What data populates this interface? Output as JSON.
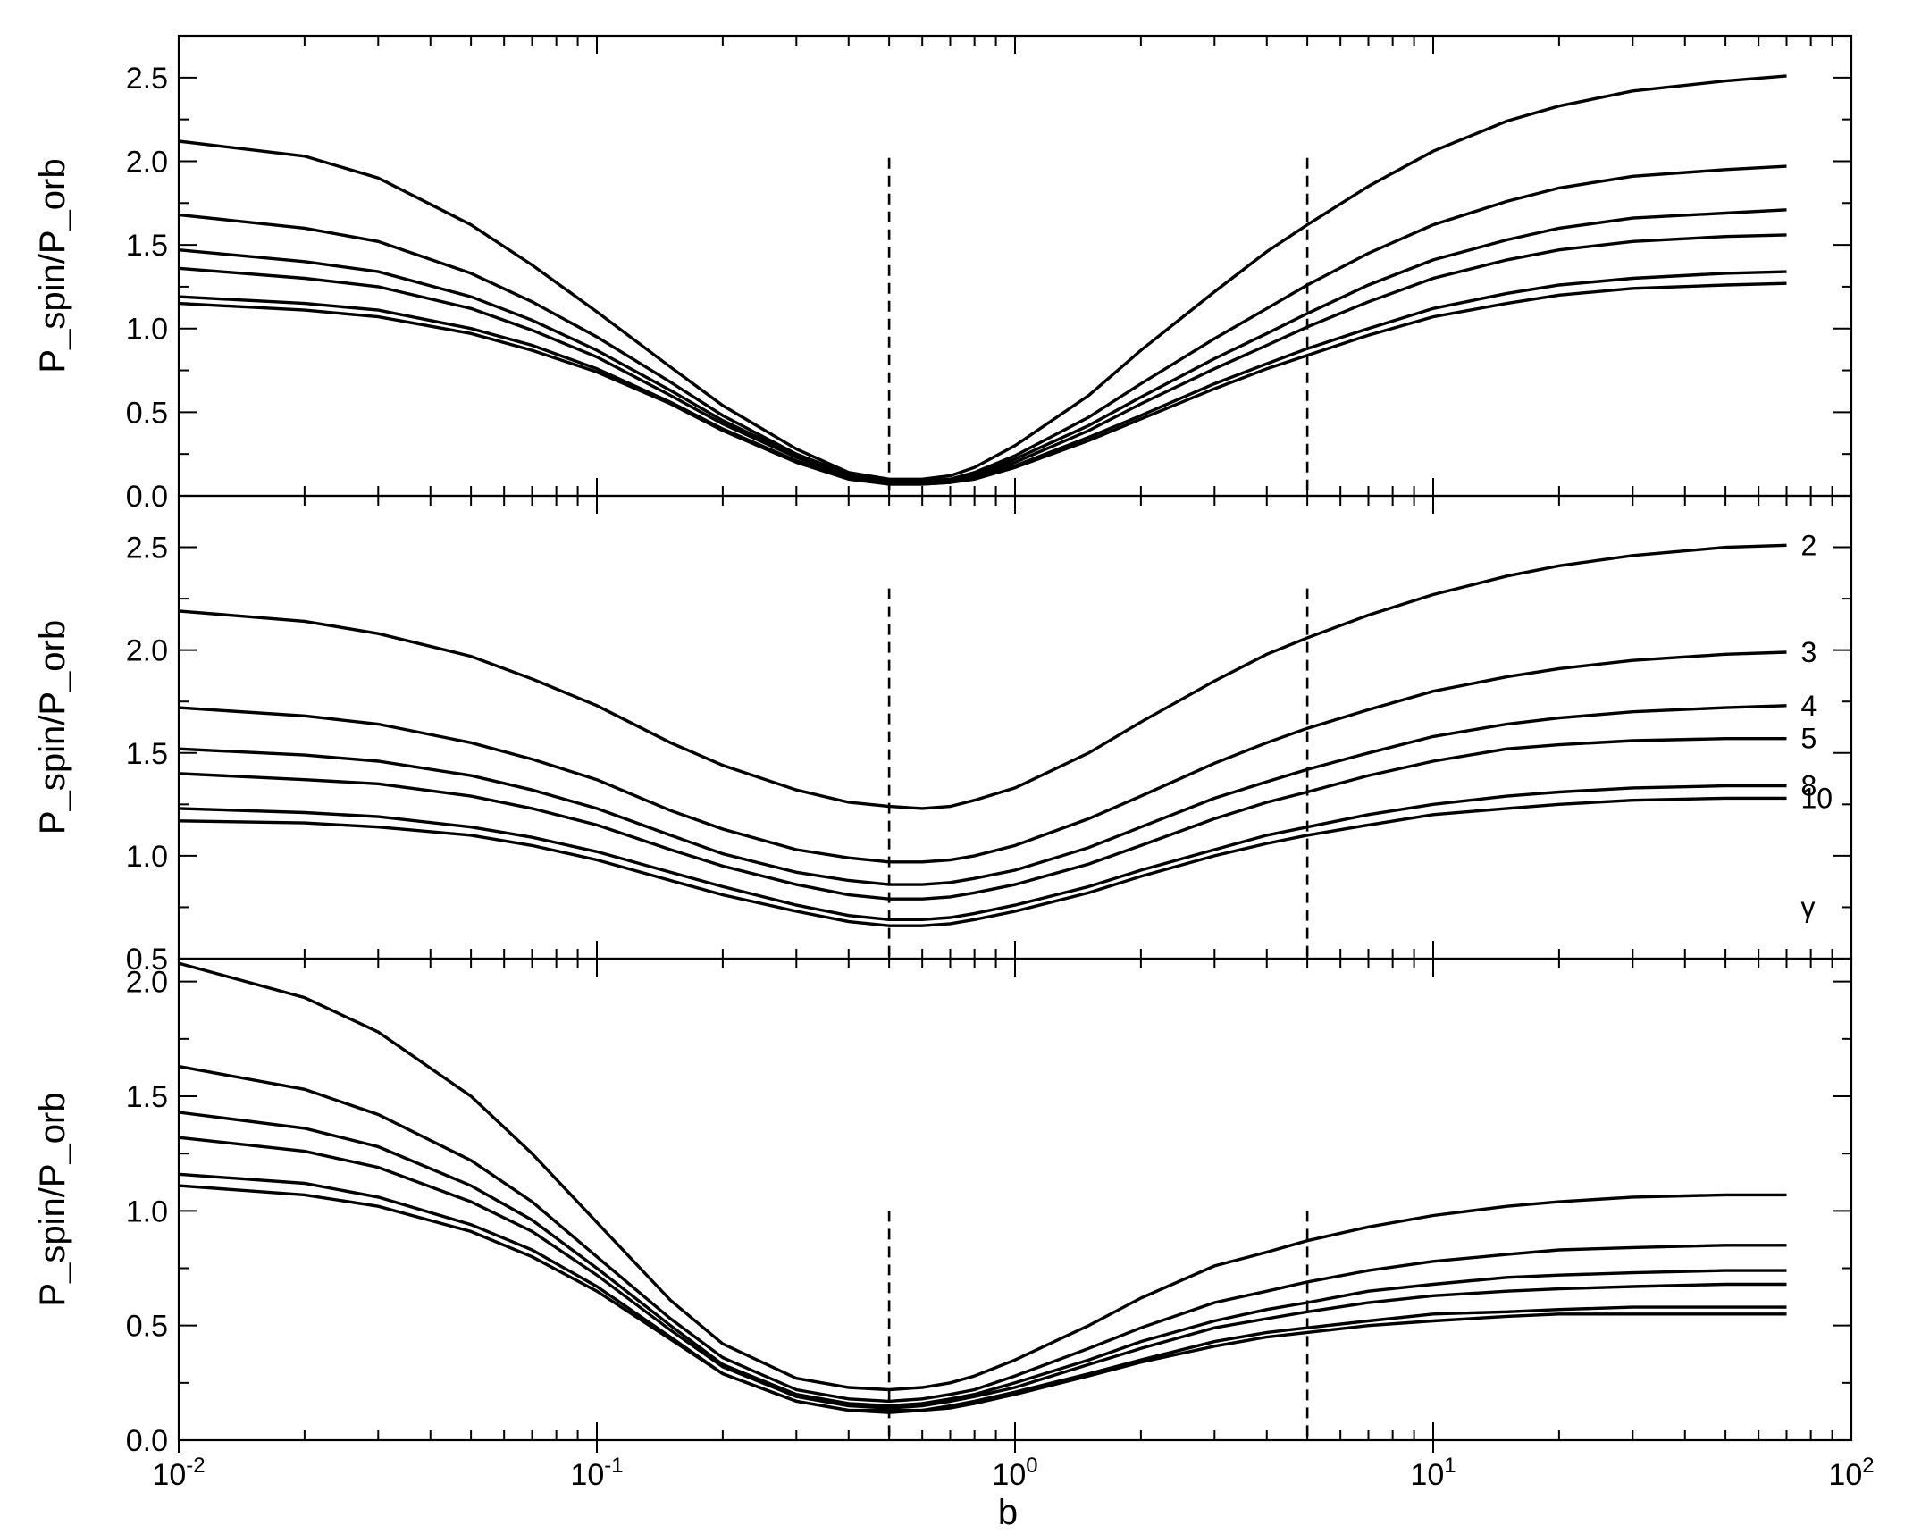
{
  "chart_data": [
    {
      "type": "line",
      "panel": "top",
      "xscale": "log",
      "xlim": [
        0.01,
        100
      ],
      "ylim": [
        0.0,
        2.75
      ],
      "ylabel": "P_spin/P_orb",
      "xlabel": "",
      "yticks": [
        "0.0",
        "0.5",
        "1.0",
        "1.5",
        "2.0",
        "2.5"
      ],
      "ytick_values": [
        0.0,
        0.5,
        1.0,
        1.5,
        2.0,
        2.5
      ],
      "dashed_lines": [
        {
          "x": 0.5,
          "y0": 0,
          "y1": 2.02
        },
        {
          "x": 5,
          "y0": 0,
          "y1": 2.02
        }
      ],
      "x": [
        0.01,
        0.02,
        0.03,
        0.05,
        0.07,
        0.1,
        0.15,
        0.2,
        0.3,
        0.4,
        0.5,
        0.6,
        0.7,
        0.8,
        1,
        1.5,
        2,
        3,
        4,
        5,
        7,
        10,
        15,
        20,
        30,
        50,
        70
      ],
      "series": [
        {
          "name": "2",
          "values": [
            2.12,
            2.03,
            1.9,
            1.62,
            1.38,
            1.1,
            0.77,
            0.54,
            0.28,
            0.14,
            0.1,
            0.1,
            0.12,
            0.17,
            0.3,
            0.6,
            0.87,
            1.22,
            1.46,
            1.62,
            1.85,
            2.06,
            2.24,
            2.33,
            2.42,
            2.48,
            2.51
          ]
        },
        {
          "name": "3",
          "values": [
            1.68,
            1.6,
            1.52,
            1.33,
            1.16,
            0.95,
            0.68,
            0.48,
            0.25,
            0.13,
            0.09,
            0.09,
            0.1,
            0.14,
            0.24,
            0.47,
            0.67,
            0.94,
            1.12,
            1.26,
            1.45,
            1.62,
            1.76,
            1.84,
            1.91,
            1.95,
            1.97
          ]
        },
        {
          "name": "4",
          "values": [
            1.47,
            1.4,
            1.34,
            1.19,
            1.05,
            0.87,
            0.63,
            0.45,
            0.24,
            0.12,
            0.08,
            0.08,
            0.09,
            0.13,
            0.22,
            0.42,
            0.59,
            0.82,
            0.97,
            1.09,
            1.26,
            1.41,
            1.53,
            1.6,
            1.66,
            1.69,
            1.71
          ]
        },
        {
          "name": "5",
          "values": [
            1.36,
            1.3,
            1.25,
            1.12,
            0.99,
            0.83,
            0.6,
            0.43,
            0.23,
            0.12,
            0.08,
            0.08,
            0.09,
            0.12,
            0.2,
            0.39,
            0.55,
            0.76,
            0.9,
            1.01,
            1.16,
            1.3,
            1.41,
            1.47,
            1.52,
            1.55,
            1.56
          ]
        },
        {
          "name": "8",
          "values": [
            1.19,
            1.15,
            1.11,
            1.0,
            0.9,
            0.76,
            0.56,
            0.4,
            0.21,
            0.11,
            0.07,
            0.07,
            0.08,
            0.11,
            0.18,
            0.35,
            0.48,
            0.67,
            0.79,
            0.88,
            1.0,
            1.12,
            1.21,
            1.26,
            1.3,
            1.33,
            1.34
          ]
        },
        {
          "name": "10",
          "values": [
            1.15,
            1.11,
            1.07,
            0.97,
            0.87,
            0.74,
            0.55,
            0.39,
            0.2,
            0.1,
            0.07,
            0.07,
            0.08,
            0.1,
            0.17,
            0.33,
            0.46,
            0.64,
            0.76,
            0.84,
            0.96,
            1.07,
            1.15,
            1.2,
            1.24,
            1.26,
            1.27
          ]
        }
      ]
    },
    {
      "type": "line",
      "panel": "middle",
      "xscale": "log",
      "xlim": [
        0.01,
        100
      ],
      "ylim": [
        0.5,
        2.75
      ],
      "ylabel": "P_spin/P_orb",
      "xlabel": "",
      "yticks": [
        "0.5",
        "1.0",
        "1.5",
        "2.0",
        "2.5"
      ],
      "ytick_values": [
        0.5,
        1.0,
        1.5,
        2.0,
        2.5
      ],
      "dashed_lines": [
        {
          "x": 0.5,
          "y0": 0.5,
          "y1": 2.3
        },
        {
          "x": 5,
          "y0": 0.5,
          "y1": 2.3
        }
      ],
      "legend_title": "γ",
      "x": [
        0.01,
        0.02,
        0.03,
        0.05,
        0.07,
        0.1,
        0.15,
        0.2,
        0.3,
        0.4,
        0.5,
        0.6,
        0.7,
        0.8,
        1,
        1.5,
        2,
        3,
        4,
        5,
        7,
        10,
        15,
        20,
        30,
        50,
        70
      ],
      "series": [
        {
          "name": "2",
          "values": [
            2.19,
            2.14,
            2.08,
            1.97,
            1.86,
            1.73,
            1.55,
            1.44,
            1.32,
            1.26,
            1.24,
            1.23,
            1.24,
            1.27,
            1.33,
            1.5,
            1.65,
            1.85,
            1.98,
            2.06,
            2.17,
            2.27,
            2.36,
            2.41,
            2.46,
            2.5,
            2.51
          ]
        },
        {
          "name": "3",
          "values": [
            1.72,
            1.68,
            1.64,
            1.55,
            1.47,
            1.37,
            1.22,
            1.13,
            1.03,
            0.99,
            0.97,
            0.97,
            0.98,
            1.0,
            1.05,
            1.18,
            1.29,
            1.45,
            1.55,
            1.62,
            1.71,
            1.8,
            1.87,
            1.91,
            1.95,
            1.98,
            1.99
          ]
        },
        {
          "name": "4",
          "values": [
            1.52,
            1.49,
            1.46,
            1.39,
            1.32,
            1.23,
            1.1,
            1.01,
            0.92,
            0.88,
            0.86,
            0.86,
            0.87,
            0.89,
            0.93,
            1.04,
            1.14,
            1.28,
            1.36,
            1.42,
            1.5,
            1.58,
            1.64,
            1.67,
            1.7,
            1.72,
            1.73
          ]
        },
        {
          "name": "5",
          "values": [
            1.4,
            1.37,
            1.35,
            1.29,
            1.23,
            1.15,
            1.03,
            0.95,
            0.86,
            0.81,
            0.79,
            0.79,
            0.8,
            0.82,
            0.86,
            0.96,
            1.05,
            1.18,
            1.26,
            1.31,
            1.39,
            1.46,
            1.52,
            1.54,
            1.56,
            1.57,
            1.57
          ]
        },
        {
          "name": "8",
          "values": [
            1.23,
            1.21,
            1.19,
            1.14,
            1.09,
            1.02,
            0.92,
            0.85,
            0.76,
            0.71,
            0.69,
            0.69,
            0.7,
            0.72,
            0.76,
            0.85,
            0.93,
            1.03,
            1.1,
            1.14,
            1.2,
            1.25,
            1.29,
            1.31,
            1.33,
            1.34,
            1.34
          ]
        },
        {
          "name": "10",
          "values": [
            1.17,
            1.16,
            1.14,
            1.1,
            1.05,
            0.98,
            0.88,
            0.81,
            0.73,
            0.68,
            0.66,
            0.66,
            0.67,
            0.69,
            0.73,
            0.82,
            0.9,
            1.0,
            1.06,
            1.1,
            1.15,
            1.2,
            1.23,
            1.25,
            1.27,
            1.28,
            1.28
          ]
        }
      ]
    },
    {
      "type": "line",
      "panel": "bottom",
      "xscale": "log",
      "xlim": [
        0.01,
        100
      ],
      "ylim": [
        0.0,
        2.1
      ],
      "ylabel": "P_spin/P_orb",
      "xlabel": "b",
      "yticks": [
        "0.0",
        "0.5",
        "1.0",
        "1.5",
        "2.0"
      ],
      "ytick_values": [
        0.0,
        0.5,
        1.0,
        1.5,
        2.0
      ],
      "xticks": [
        {
          "base": "10",
          "exp": "-2",
          "value": 0.01
        },
        {
          "base": "10",
          "exp": "-1",
          "value": 0.1
        },
        {
          "base": "10",
          "exp": "0",
          "value": 1
        },
        {
          "base": "10",
          "exp": "1",
          "value": 10
        },
        {
          "base": "10",
          "exp": "2",
          "value": 100
        }
      ],
      "dashed_lines": [
        {
          "x": 0.5,
          "y0": 0,
          "y1": 1.0
        },
        {
          "x": 5,
          "y0": 0,
          "y1": 1.0
        }
      ],
      "x": [
        0.01,
        0.02,
        0.03,
        0.05,
        0.07,
        0.1,
        0.15,
        0.2,
        0.3,
        0.4,
        0.5,
        0.6,
        0.7,
        0.8,
        1,
        1.5,
        2,
        3,
        4,
        5,
        7,
        10,
        15,
        20,
        30,
        50,
        70
      ],
      "series": [
        {
          "name": "2",
          "values": [
            2.08,
            1.93,
            1.78,
            1.5,
            1.25,
            0.95,
            0.61,
            0.42,
            0.27,
            0.23,
            0.22,
            0.23,
            0.25,
            0.28,
            0.35,
            0.5,
            0.62,
            0.76,
            0.82,
            0.87,
            0.93,
            0.98,
            1.02,
            1.04,
            1.06,
            1.07,
            1.07
          ]
        },
        {
          "name": "3",
          "values": [
            1.63,
            1.53,
            1.42,
            1.22,
            1.04,
            0.8,
            0.53,
            0.36,
            0.22,
            0.18,
            0.17,
            0.18,
            0.2,
            0.22,
            0.28,
            0.4,
            0.49,
            0.6,
            0.65,
            0.69,
            0.74,
            0.78,
            0.81,
            0.83,
            0.84,
            0.85,
            0.85
          ]
        },
        {
          "name": "4",
          "values": [
            1.43,
            1.36,
            1.28,
            1.11,
            0.96,
            0.75,
            0.5,
            0.33,
            0.2,
            0.16,
            0.15,
            0.16,
            0.18,
            0.2,
            0.25,
            0.35,
            0.43,
            0.52,
            0.57,
            0.6,
            0.65,
            0.68,
            0.71,
            0.72,
            0.73,
            0.74,
            0.74
          ]
        },
        {
          "name": "5",
          "values": [
            1.32,
            1.26,
            1.19,
            1.04,
            0.91,
            0.72,
            0.48,
            0.32,
            0.19,
            0.15,
            0.14,
            0.15,
            0.17,
            0.19,
            0.23,
            0.33,
            0.4,
            0.49,
            0.53,
            0.56,
            0.6,
            0.63,
            0.65,
            0.66,
            0.67,
            0.68,
            0.68
          ]
        },
        {
          "name": "8",
          "values": [
            1.16,
            1.12,
            1.06,
            0.94,
            0.83,
            0.67,
            0.45,
            0.29,
            0.17,
            0.13,
            0.13,
            0.13,
            0.15,
            0.17,
            0.21,
            0.29,
            0.35,
            0.43,
            0.47,
            0.49,
            0.52,
            0.55,
            0.56,
            0.57,
            0.58,
            0.58,
            0.58
          ]
        },
        {
          "name": "10",
          "values": [
            1.11,
            1.07,
            1.02,
            0.91,
            0.8,
            0.65,
            0.44,
            0.29,
            0.17,
            0.13,
            0.12,
            0.13,
            0.14,
            0.16,
            0.2,
            0.28,
            0.34,
            0.41,
            0.45,
            0.47,
            0.5,
            0.52,
            0.54,
            0.55,
            0.55,
            0.55,
            0.55
          ]
        }
      ]
    }
  ]
}
